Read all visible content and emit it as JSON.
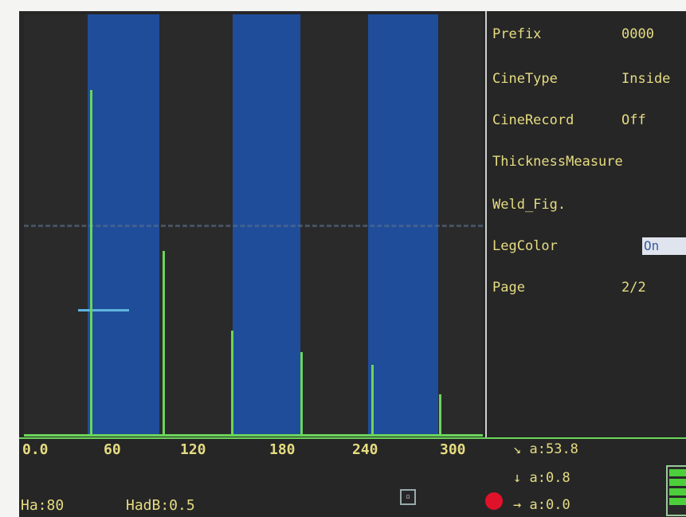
{
  "menu": {
    "items": [
      {
        "label": "Prefix",
        "value": "0000"
      },
      {
        "label": "CineType",
        "value": "Inside"
      },
      {
        "label": "CineRecord",
        "value": "Off"
      },
      {
        "label": "ThicknessMeasure",
        "value": ""
      },
      {
        "label": "Weld_Fig.",
        "value": ""
      },
      {
        "label": "LegColor",
        "value": "On"
      },
      {
        "label": "Page",
        "value": "2/2"
      }
    ]
  },
  "axis": {
    "ticks": [
      "0.0",
      "60",
      "120",
      "180",
      "240",
      "300"
    ]
  },
  "status": {
    "ha": "Ha:80",
    "hadb": "HadB:0.5"
  },
  "readouts": {
    "angle": "a:53.8",
    "down": "a:0.8",
    "right": "a:0.0"
  },
  "colors": {
    "band": "#1f4d9a",
    "signal": "#6bd55a",
    "text": "#e6dc82",
    "gate": "#5fb4e0",
    "record": "#e0122a"
  },
  "signal": {
    "peak_heights_pct": [
      82,
      44,
      25,
      20,
      17,
      10
    ]
  }
}
